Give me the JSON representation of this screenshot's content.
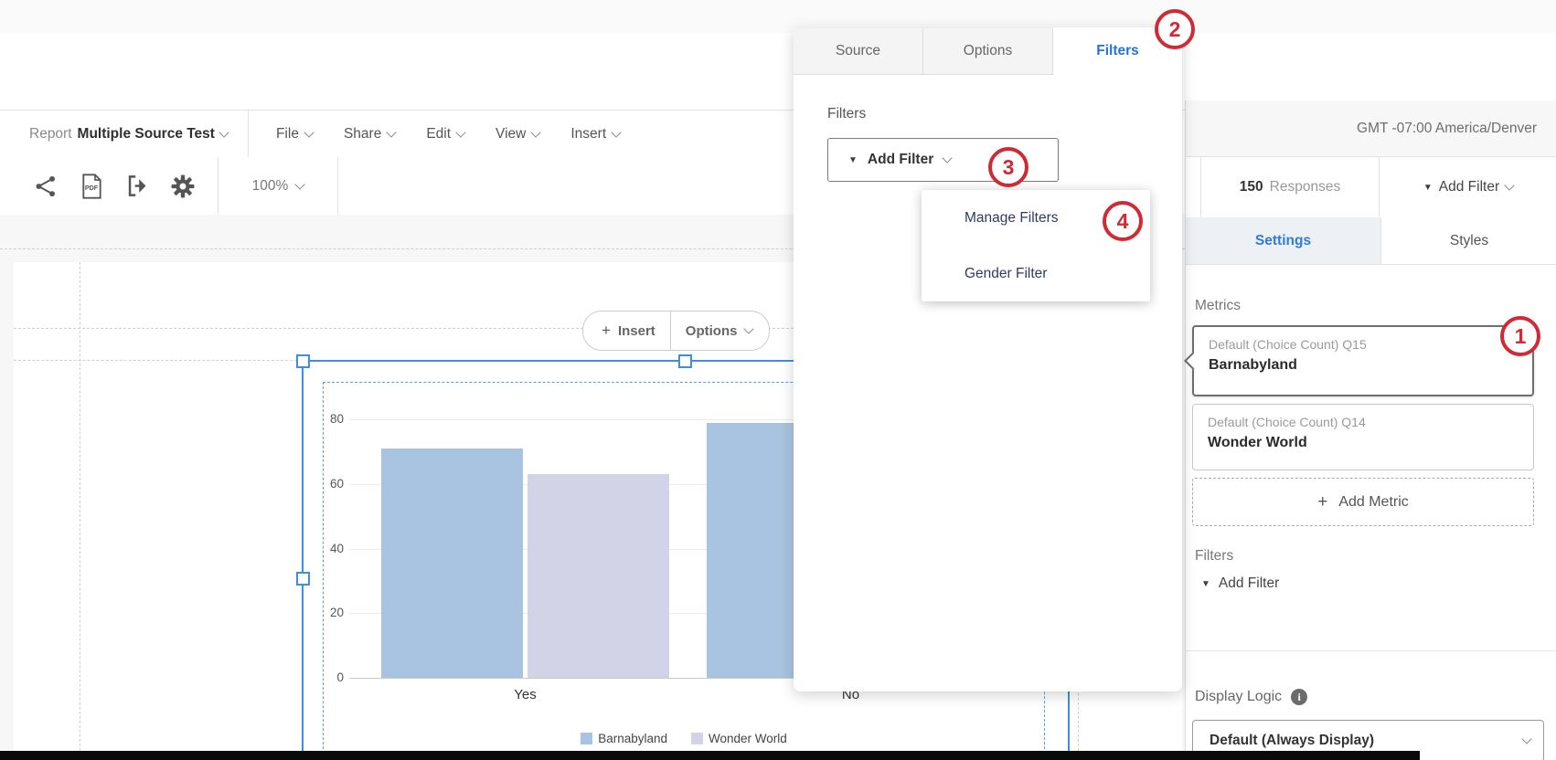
{
  "app": {
    "top_menu": {
      "report_label": "Report",
      "report_name": "Multiple Source Test",
      "items": [
        "File",
        "Share",
        "Edit",
        "View",
        "Insert"
      ]
    },
    "toolbar": {
      "zoom_level": "100%"
    },
    "timezone": "GMT -07:00 America/Denver"
  },
  "widget_toolbar": {
    "insert_label": "Insert",
    "options_label": "Options"
  },
  "popup": {
    "tabs": [
      {
        "label": "Source",
        "active": false
      },
      {
        "label": "Options",
        "active": false
      },
      {
        "label": "Filters",
        "active": true
      }
    ],
    "filters_heading": "Filters",
    "add_filter_button": "Add Filter",
    "menu_items": [
      {
        "label": "Manage Filters"
      },
      {
        "label": "Gender Filter"
      }
    ]
  },
  "panel": {
    "responses_count": "150",
    "responses_label": "Responses",
    "add_filter_button": "Add Filter",
    "tabs": [
      {
        "label": "Settings",
        "active": true
      },
      {
        "label": "Styles",
        "active": false
      }
    ],
    "metrics_heading": "Metrics",
    "metrics": [
      {
        "subtitle": "Default (Choice Count) Q15",
        "title": "Barnabyland",
        "selected": true
      },
      {
        "subtitle": "Default (Choice Count) Q14",
        "title": "Wonder World",
        "selected": false
      }
    ],
    "add_metric_button": "Add Metric",
    "filters_heading": "Filters",
    "add_filter_link": "Add Filter",
    "display_logic_heading": "Display Logic",
    "display_logic_value": "Default (Always Display)"
  },
  "annotations": {
    "badge_color": "#cf2a36",
    "badges": [
      {
        "number": "1"
      },
      {
        "number": "2"
      },
      {
        "number": "3"
      },
      {
        "number": "4"
      }
    ]
  },
  "chart_data": {
    "type": "bar",
    "categories": [
      "Yes",
      "No"
    ],
    "series": [
      {
        "name": "Barnabyland",
        "color": "#a9c4e1",
        "values": [
          71,
          79
        ]
      },
      {
        "name": "Wonder World",
        "color": "#d2d3e6",
        "values": [
          63,
          null
        ]
      }
    ],
    "ylim": [
      0,
      80
    ],
    "y_ticks": [
      0,
      20,
      40,
      60,
      80
    ],
    "grid": true,
    "legend_position": "bottom"
  }
}
